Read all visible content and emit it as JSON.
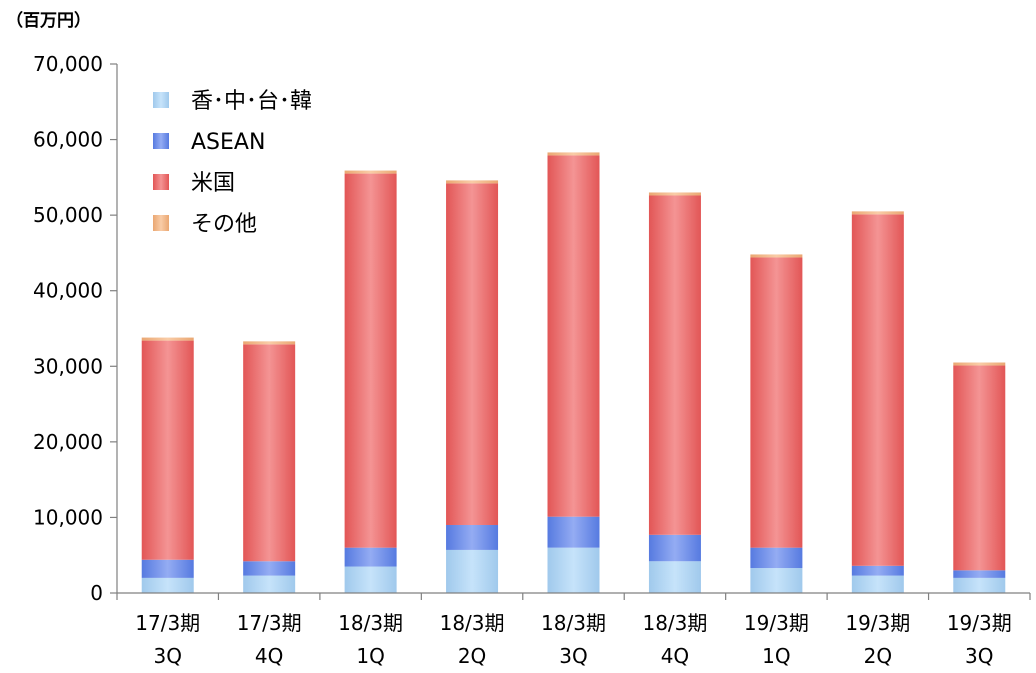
{
  "unit_label": "（百万円）",
  "colors": {
    "hk_cn_tw_kr": "#a8d4f8",
    "asean": "#5b80ec",
    "usa": "#ee5b5b",
    "other": "#f6b078",
    "axis": "#808080"
  },
  "chart_data": {
    "type": "bar",
    "stacked": true,
    "ylim": [
      0,
      70000
    ],
    "yticks": [
      "0",
      "10,000",
      "20,000",
      "30,000",
      "40,000",
      "50,000",
      "60,000",
      "70,000"
    ],
    "ytick_values": [
      0,
      10000,
      20000,
      30000,
      40000,
      50000,
      60000,
      70000
    ],
    "categories": [
      [
        "17/3期",
        "3Q"
      ],
      [
        "17/3期",
        "4Q"
      ],
      [
        "18/3期",
        "1Q"
      ],
      [
        "18/3期",
        "2Q"
      ],
      [
        "18/3期",
        "3Q"
      ],
      [
        "18/3期",
        "4Q"
      ],
      [
        "19/3期",
        "1Q"
      ],
      [
        "19/3期",
        "2Q"
      ],
      [
        "19/3期",
        "3Q"
      ]
    ],
    "legend_position": "top-left",
    "series": [
      {
        "name": "香･中･台･韓",
        "color_key": "hk_cn_tw_kr",
        "values": [
          2000,
          2300,
          3500,
          5700,
          6000,
          4200,
          3300,
          2300,
          2000
        ]
      },
      {
        "name": "ASEAN",
        "color_key": "asean",
        "values": [
          2400,
          1900,
          2500,
          3300,
          4100,
          3500,
          2700,
          1300,
          1000
        ]
      },
      {
        "name": "米国",
        "color_key": "usa",
        "values": [
          29000,
          28700,
          49500,
          45200,
          47800,
          44900,
          38400,
          46500,
          27100
        ]
      },
      {
        "name": "その他",
        "color_key": "other",
        "values": [
          400,
          400,
          400,
          400,
          400,
          400,
          400,
          400,
          400
        ]
      }
    ]
  }
}
